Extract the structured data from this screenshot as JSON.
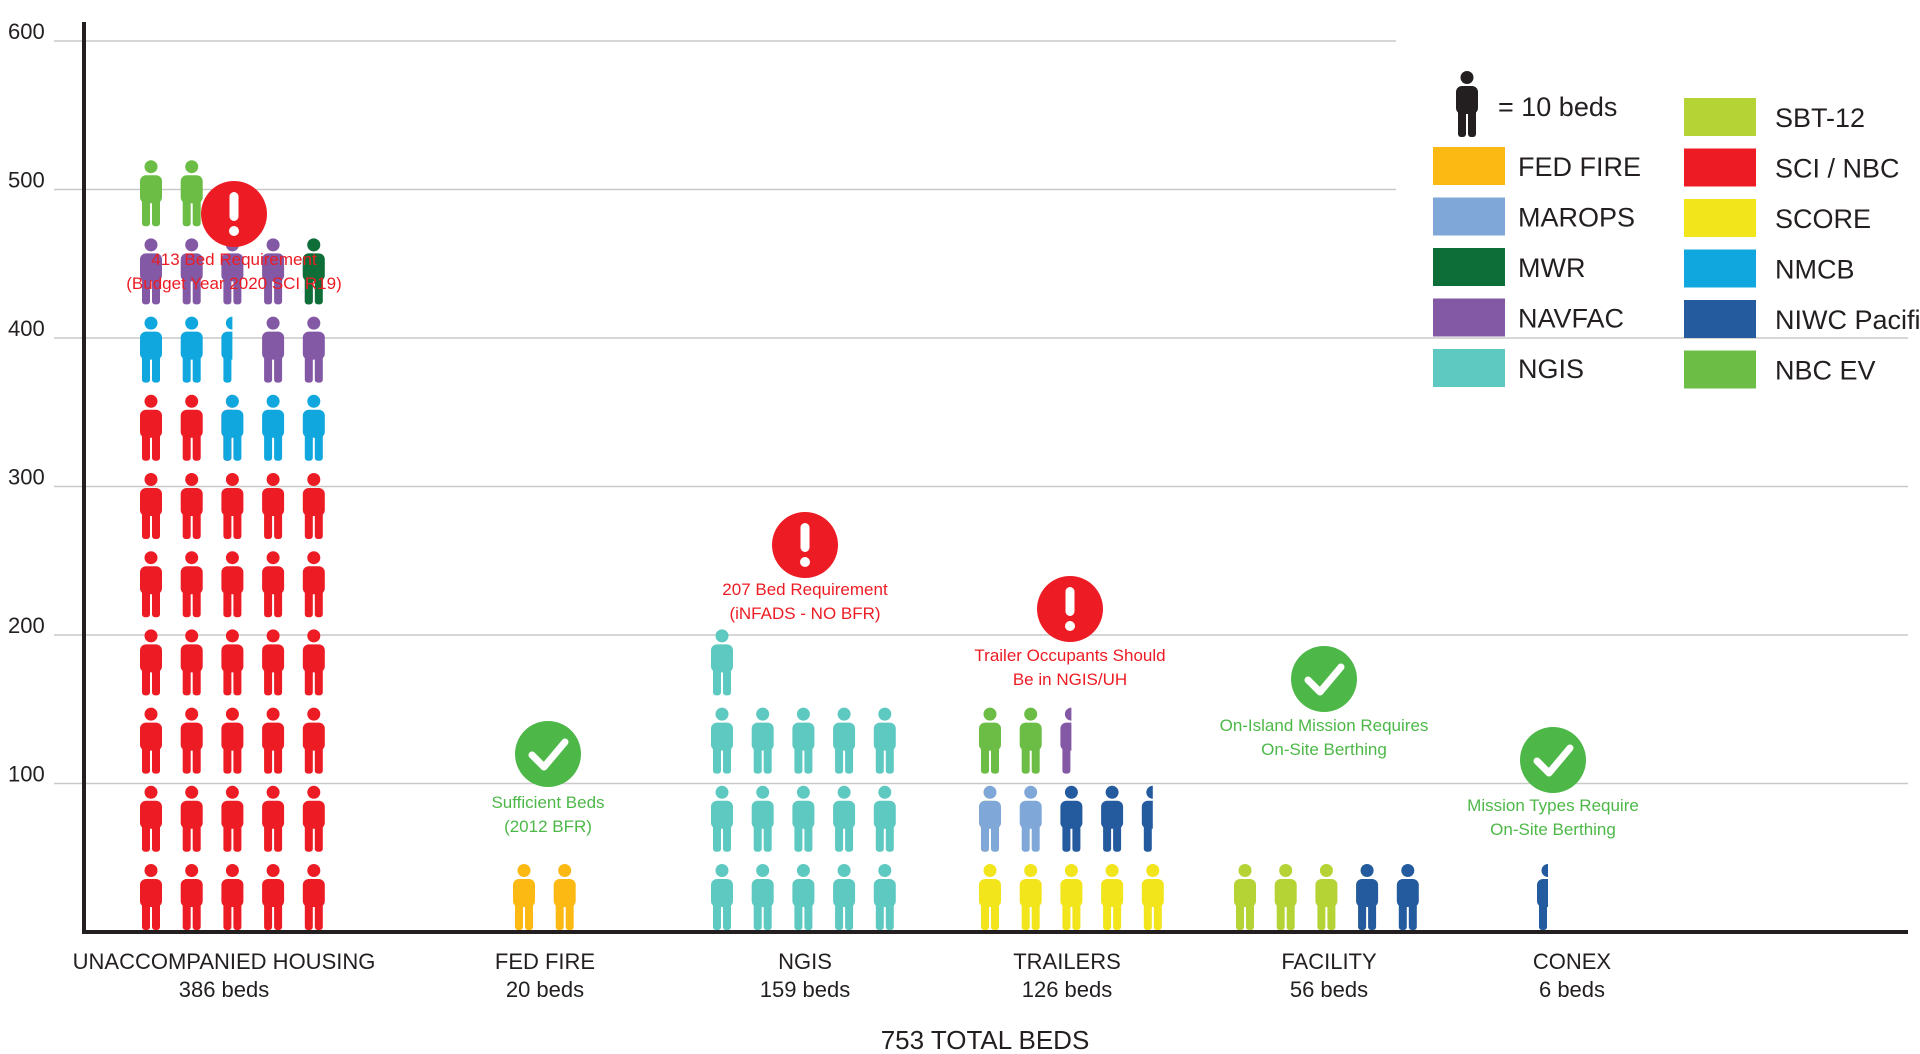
{
  "chart_data": {
    "type": "pictograph",
    "unit_label": "= 10 beds",
    "ylim": [
      0,
      600
    ],
    "yticks": [
      "100",
      "200",
      "300",
      "400",
      "500",
      "600"
    ],
    "total_label": "753 TOTAL BEDS",
    "legend": [
      {
        "name": "FED FIRE",
        "color": "#fdb913"
      },
      {
        "name": "MAROPS",
        "color": "#7fa8d8"
      },
      {
        "name": "MWR",
        "color": "#0e6e38"
      },
      {
        "name": "NAVFAC",
        "color": "#8358a5"
      },
      {
        "name": "NGIS",
        "color": "#5ec9c1"
      },
      {
        "name": "SBT-12",
        "color": "#b5d334"
      },
      {
        "name": "SCI / NBC",
        "color": "#ed1c24"
      },
      {
        "name": "SCORE",
        "color": "#f2e51b"
      },
      {
        "name": "NMCB",
        "color": "#10a7df"
      },
      {
        "name": "NIWC Pacific",
        "color": "#245b9f"
      },
      {
        "name": "NBC EV",
        "color": "#6cbd45"
      }
    ],
    "categories": [
      {
        "name": "UNACCOMPANIED HOUSING",
        "beds_label": "386 beds",
        "total": 386,
        "composition": [
          {
            "series": "SCI / NBC",
            "icons": 32.5
          },
          {
            "series": "NMCB",
            "icons": 5.5
          },
          {
            "series": "NAVFAC",
            "icons": 6.5
          },
          {
            "series": "MWR",
            "icons": 1
          },
          {
            "series": "NBC EV",
            "icons": 2
          }
        ]
      },
      {
        "name": "FED FIRE",
        "beds_label": "20 beds",
        "total": 20,
        "composition": [
          {
            "series": "FED FIRE",
            "icons": 2
          }
        ]
      },
      {
        "name": "NGIS",
        "beds_label": "159 beds",
        "total": 159,
        "composition": [
          {
            "series": "NGIS",
            "icons": 16
          }
        ]
      },
      {
        "name": "TRAILERS",
        "beds_label": "126 beds",
        "total": 126,
        "composition": [
          {
            "series": "SCORE",
            "icons": 5.5
          },
          {
            "series": "MAROPS",
            "icons": 2
          },
          {
            "series": "NIWC Pacific",
            "icons": 2.5
          },
          {
            "series": "NBC EV",
            "icons": 2
          },
          {
            "series": "NAVFAC",
            "icons": 0.5
          }
        ]
      },
      {
        "name": "FACILITY",
        "beds_label": "56 beds",
        "total": 56,
        "composition": [
          {
            "series": "SBT-12",
            "icons": 3.5
          },
          {
            "series": "NIWC Pacific",
            "icons": 2
          }
        ]
      },
      {
        "name": "CONEX",
        "beds_label": "6 beds",
        "total": 6,
        "composition": [
          {
            "series": "NIWC Pacific",
            "icons": 0.5
          }
        ]
      }
    ],
    "annotations": [
      {
        "status": "warning",
        "lines": [
          "413 Bed Requirement",
          "(Budget Year 2020 SCI R19)"
        ]
      },
      {
        "status": "ok",
        "lines": [
          "Sufficient Beds",
          "(2012 BFR)"
        ]
      },
      {
        "status": "warning",
        "lines": [
          "207 Bed Requirement",
          "(iNFADS - NO BFR)"
        ]
      },
      {
        "status": "warning",
        "lines": [
          "Trailer Occupants Should",
          "Be in NGIS/UH"
        ]
      },
      {
        "status": "ok",
        "lines": [
          "On-Island Mission Requires",
          "On-Site Berthing"
        ]
      },
      {
        "status": "ok",
        "lines": [
          "Mission Types Require",
          "On-Site Berthing"
        ]
      }
    ],
    "status_colors": {
      "warning": "#ed1c24",
      "ok": "#4db848"
    }
  }
}
